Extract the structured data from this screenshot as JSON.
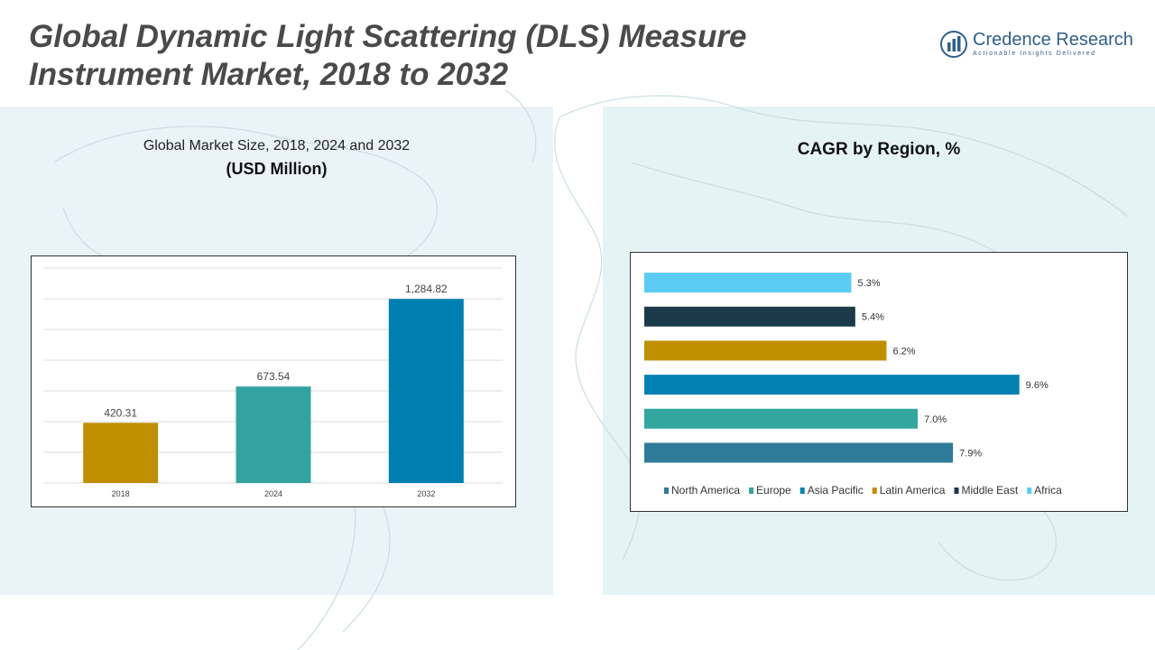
{
  "header": {
    "title_line1": "Global Dynamic Light Scattering (DLS) Measure",
    "title_line2": "Instrument Market, 2018 to 2032"
  },
  "logo": {
    "name": "Credence Research",
    "tagline": "Actionable Insights Delivered",
    "icon": "globe-logo-icon",
    "color": "#2f5f8a"
  },
  "left_panel": {
    "subtitle": "Global Market Size, 2018, 2024 and 2032",
    "unit": "(USD Million)"
  },
  "right_panel": {
    "title": "CAGR by Region, %"
  },
  "chart_data": [
    {
      "type": "bar",
      "orientation": "vertical",
      "title": "Global Market Size, 2018, 2024 and 2032",
      "ylabel": "(USD Million)",
      "categories": [
        "2018",
        "2024",
        "2032"
      ],
      "values": [
        420.31,
        673.54,
        1284.82
      ],
      "labels": [
        "420.31",
        "673.54",
        "1,284.82"
      ],
      "colors": [
        "#bf8f00",
        "#33a3a1",
        "#0080b0"
      ],
      "ylim": [
        0,
        1500
      ],
      "grid": true,
      "legend": "none"
    },
    {
      "type": "bar",
      "orientation": "horizontal",
      "title": "CAGR by Region, %",
      "categories": [
        "North America",
        "Europe",
        "Asia Pacific",
        "Latin America",
        "Middle East",
        "Africa"
      ],
      "values": [
        7.9,
        7.0,
        9.6,
        6.2,
        5.4,
        5.3
      ],
      "labels": [
        "7.9%",
        "7.0%",
        "9.6%",
        "6.2%",
        "5.4%",
        "5.3%"
      ],
      "colors": [
        "#2e7b9a",
        "#33a6a0",
        "#0480b2",
        "#bf8f00",
        "#1a3a4a",
        "#5bcdf4"
      ],
      "xlim": [
        0,
        10
      ],
      "grid": false,
      "legend": "bottom"
    }
  ]
}
